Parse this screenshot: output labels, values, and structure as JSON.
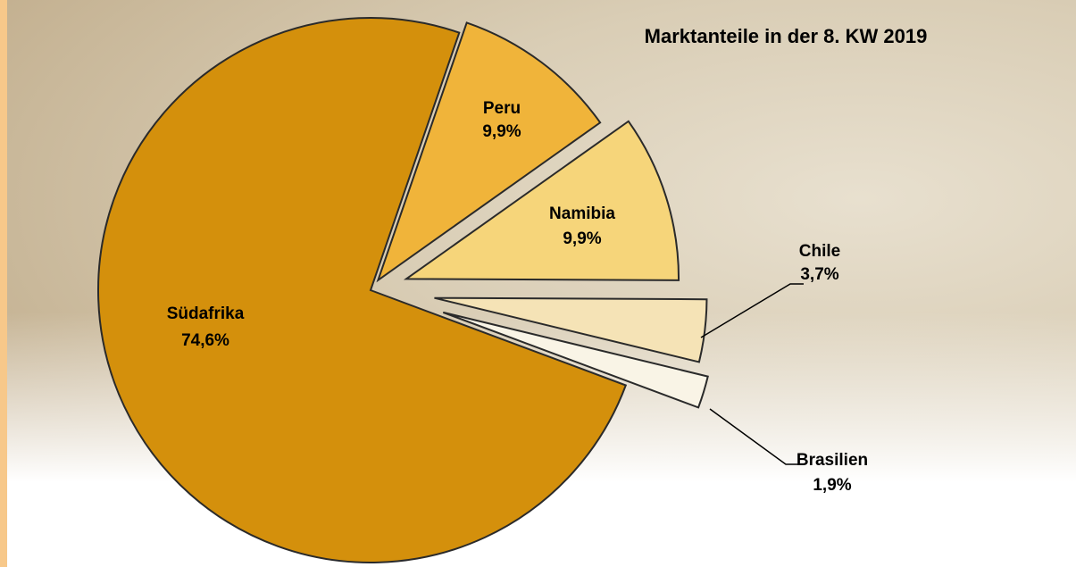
{
  "chart_data": {
    "type": "pie",
    "title": "Marktanteile in der 8. KW 2019",
    "categories": [
      "Peru",
      "Namibia",
      "Chile",
      "Brasilien",
      "Südafrika"
    ],
    "values": [
      9.9,
      9.9,
      3.7,
      1.9,
      74.6
    ],
    "value_labels": [
      "9,9%",
      "9,9%",
      "3,7%",
      "1,9%",
      "74,6%"
    ],
    "colors": [
      "#f0b43a",
      "#f6d57a",
      "#f5e3b6",
      "#f9f4e6",
      "#d4900c"
    ]
  }
}
